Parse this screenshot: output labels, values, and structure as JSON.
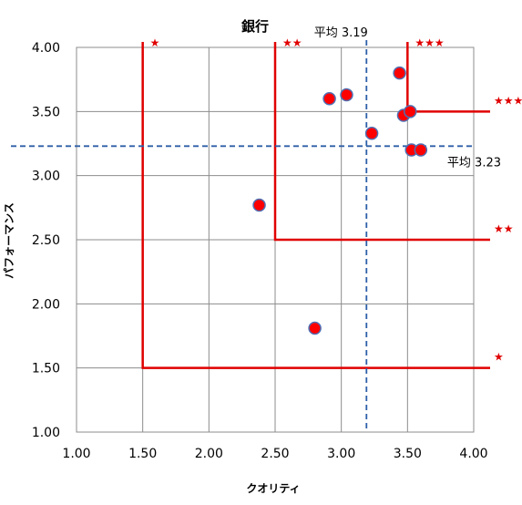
{
  "chart_data": {
    "type": "scatter",
    "title": "銀行",
    "xlabel": "クオリティ",
    "ylabel": "パフォーマンス",
    "xlim": [
      1.0,
      4.0
    ],
    "ylim": [
      1.0,
      4.0
    ],
    "x_ticks": [
      "1.00",
      "1.50",
      "2.00",
      "2.50",
      "3.00",
      "3.50",
      "4.00"
    ],
    "y_ticks": [
      "1.00",
      "1.50",
      "2.00",
      "2.50",
      "3.00",
      "3.50",
      "4.00"
    ],
    "grid": true,
    "marker_color": "#ff0000",
    "marker_edge_color": "#4f6fb3",
    "points": [
      {
        "x": 2.38,
        "y": 2.77
      },
      {
        "x": 2.8,
        "y": 1.81
      },
      {
        "x": 2.91,
        "y": 3.6
      },
      {
        "x": 3.04,
        "y": 3.63
      },
      {
        "x": 3.23,
        "y": 3.33
      },
      {
        "x": 3.44,
        "y": 3.8
      },
      {
        "x": 3.47,
        "y": 3.47
      },
      {
        "x": 3.52,
        "y": 3.5
      },
      {
        "x": 3.53,
        "y": 3.2
      },
      {
        "x": 3.6,
        "y": 3.2
      }
    ],
    "reference_lines": {
      "color": "#2e5fa8",
      "vertical": {
        "x": 3.19,
        "label": "平均 3.19"
      },
      "horizontal": {
        "y": 3.23,
        "label": "平均 3.23"
      }
    },
    "tiers": {
      "color": "#e00000",
      "items": [
        {
          "x": 1.5,
          "y": 1.5,
          "label": "★"
        },
        {
          "x": 2.5,
          "y": 2.5,
          "label": "★★"
        },
        {
          "x": 3.5,
          "y": 3.5,
          "label": "★★★"
        }
      ]
    }
  }
}
